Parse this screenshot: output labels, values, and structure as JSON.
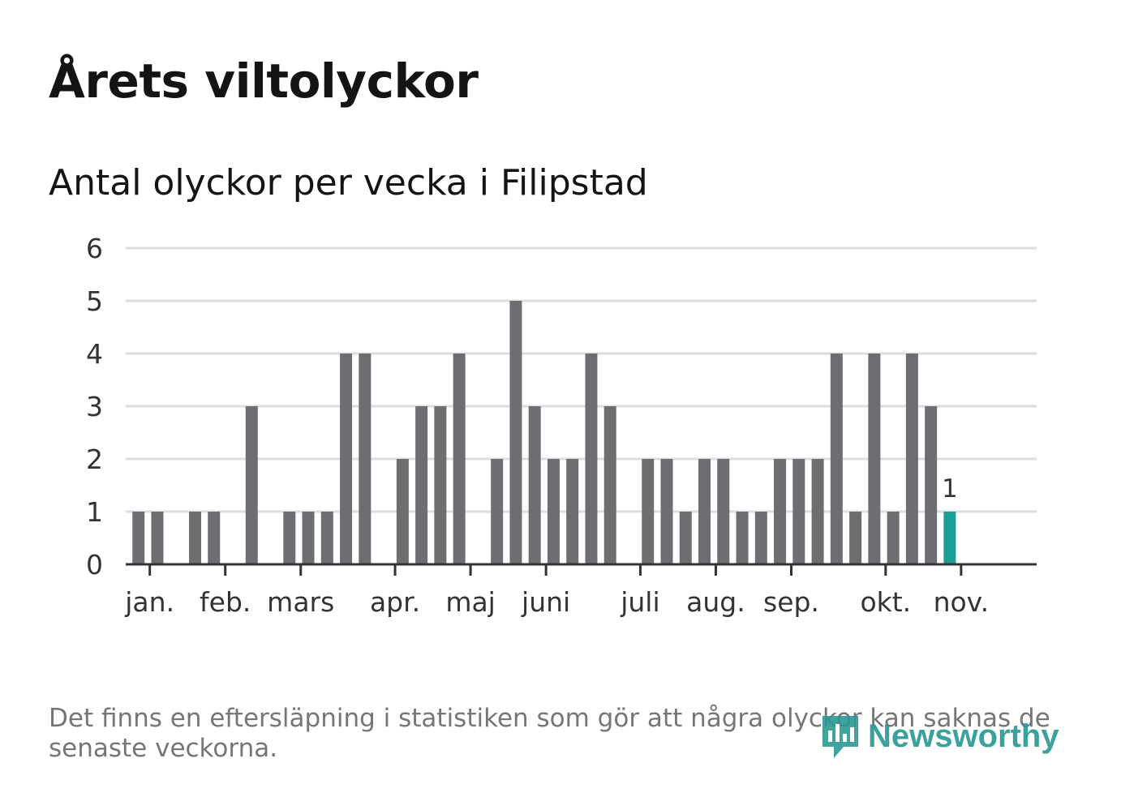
{
  "title": "Årets viltolyckor",
  "subtitle": "Antal olyckor per vecka i Filipstad",
  "footnote": "Det finns en eftersläpning i statistiken som gör att några olyckor kan saknas de senaste veckorna.",
  "logo": {
    "text": "Newsworthy",
    "icon": "newsworthy-logo-icon"
  },
  "colors": {
    "bar": "#6e6d72",
    "highlight": "#1a9e95",
    "grid": "#dddddd",
    "axis": "#333333",
    "text": "#333333"
  },
  "chart_data": {
    "type": "bar",
    "ylim": [
      0,
      6
    ],
    "yticks": [
      0,
      1,
      2,
      3,
      4,
      5,
      6
    ],
    "xlabel": "",
    "ylabel": "",
    "weeks": [
      1,
      2,
      3,
      4,
      5,
      6,
      7,
      8,
      9,
      10,
      11,
      12,
      13,
      14,
      15,
      16,
      17,
      18,
      19,
      20,
      21,
      22,
      23,
      24,
      25,
      26,
      27,
      28,
      29,
      30,
      31,
      32,
      33,
      34,
      35,
      36,
      37,
      38,
      39,
      40,
      41,
      42,
      43,
      44,
      45,
      46
    ],
    "values": [
      0,
      0,
      1,
      1,
      0,
      1,
      1,
      0,
      3,
      0,
      1,
      1,
      1,
      4,
      4,
      0,
      2,
      3,
      3,
      4,
      0,
      2,
      5,
      3,
      2,
      2,
      4,
      3,
      0,
      2,
      2,
      1,
      2,
      2,
      1,
      1,
      2,
      2,
      2,
      4,
      1,
      4,
      1,
      4,
      3,
      1
    ],
    "highlight_index": 45,
    "highlight_label": "1",
    "month_ticks": [
      {
        "label": "jan.",
        "week": 3.6
      },
      {
        "label": "feb.",
        "week": 7.6
      },
      {
        "label": "mars",
        "week": 11.6
      },
      {
        "label": "apr.",
        "week": 16.6
      },
      {
        "label": "maj",
        "week": 20.6
      },
      {
        "label": "juni",
        "week": 24.6
      },
      {
        "label": "juli",
        "week": 29.6
      },
      {
        "label": "aug.",
        "week": 33.6
      },
      {
        "label": "sep.",
        "week": 37.6
      },
      {
        "label": "okt.",
        "week": 42.6
      },
      {
        "label": "nov.",
        "week": 46.6
      }
    ]
  }
}
